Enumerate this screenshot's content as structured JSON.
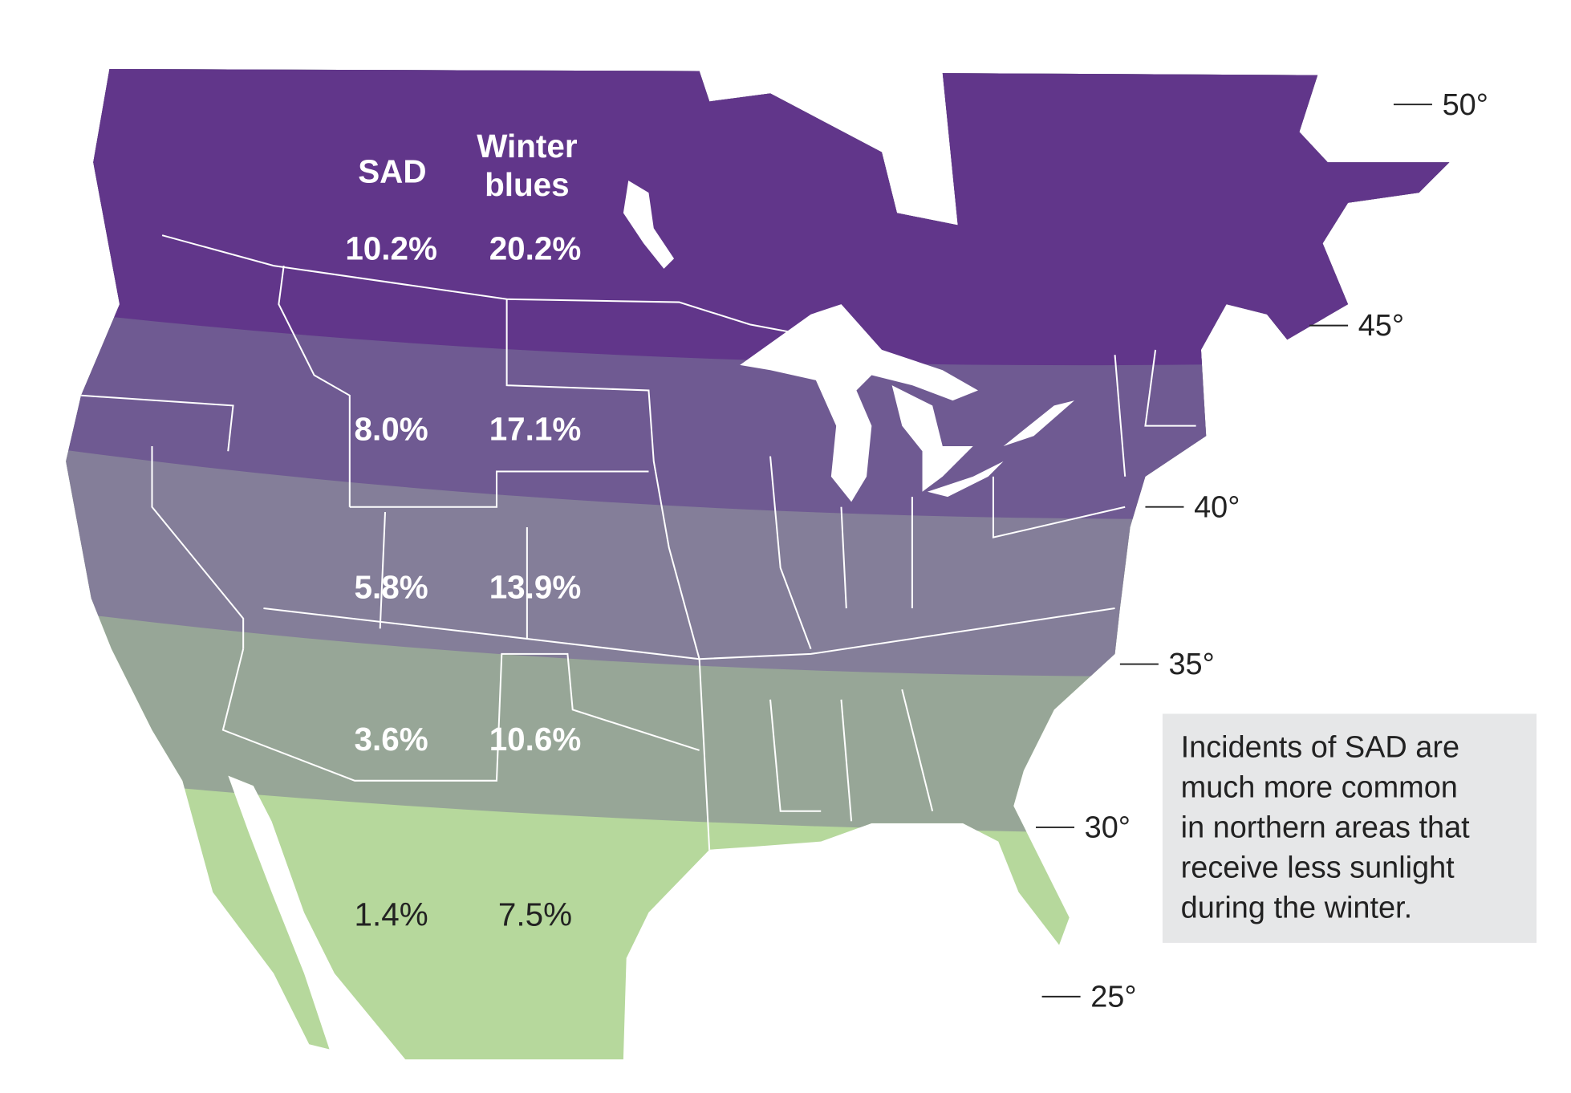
{
  "header": {
    "sad": "SAD",
    "winter_blues": [
      "Winter",
      "blues"
    ]
  },
  "bands": [
    {
      "sad": "10.2%",
      "winter_blues": "20.2%"
    },
    {
      "sad": "8.0%",
      "winter_blues": "17.1%"
    },
    {
      "sad": "5.8%",
      "winter_blues": "13.9%"
    },
    {
      "sad": "3.6%",
      "winter_blues": "10.6%"
    },
    {
      "sad": "1.4%",
      "winter_blues": "7.5%"
    }
  ],
  "latitudes": [
    "50°",
    "45°",
    "40°",
    "35°",
    "30°",
    "25°"
  ],
  "note": [
    "Incidents of SAD are",
    "much more common",
    "in northern areas that",
    "receive less sunlight",
    "during the winter."
  ]
}
